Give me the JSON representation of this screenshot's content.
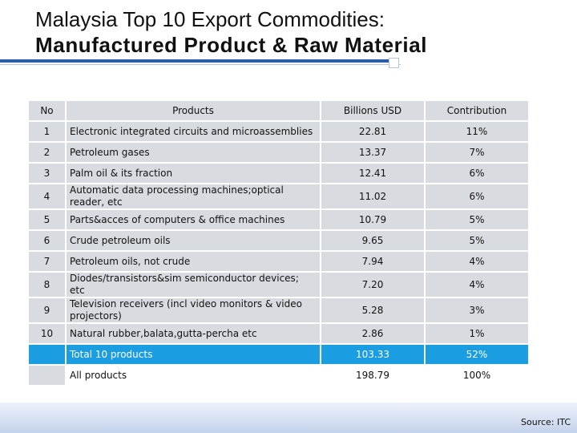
{
  "title": {
    "line1": "Malaysia Top 10 Export Commodities:",
    "line2": "Manufactured Product & Raw Material"
  },
  "table": {
    "headers": {
      "no": "No",
      "products": "Products",
      "billions": "Billions USD",
      "contribution": "Contribution"
    },
    "rows": [
      {
        "no": "1",
        "product": "Electronic integrated circuits and microassemblies",
        "value": "22.81",
        "contribution": "11%"
      },
      {
        "no": "2",
        "product": "Petroleum gases",
        "value": "13.37",
        "contribution": "7%"
      },
      {
        "no": "3",
        "product": "Palm oil & its fraction",
        "value": "12.41",
        "contribution": "6%"
      },
      {
        "no": "4",
        "product": "Automatic data processing machines;optical reader, etc",
        "value": "11.02",
        "contribution": "6%"
      },
      {
        "no": "5",
        "product": "Parts&acces of computers & office machines",
        "value": "10.79",
        "contribution": "5%"
      },
      {
        "no": "6",
        "product": "Crude petroleum oils",
        "value": "9.65",
        "contribution": "5%"
      },
      {
        "no": "7",
        "product": "Petroleum oils, not crude",
        "value": "7.94",
        "contribution": "4%"
      },
      {
        "no": "8",
        "product": "Diodes/transistors&sim semiconductor devices; etc",
        "value": "7.20",
        "contribution": "4%"
      },
      {
        "no": "9",
        "product": "Television receivers (incl video monitors & video projectors)",
        "value": "5.28",
        "contribution": "3%"
      },
      {
        "no": "10",
        "product": "Natural rubber,balata,gutta-percha etc",
        "value": "2.86",
        "contribution": "1%"
      }
    ],
    "total10": {
      "label": "Total 10 products",
      "value": "103.33",
      "contribution": "52%"
    },
    "all": {
      "label": "All products",
      "value": "198.79",
      "contribution": "100%"
    }
  },
  "source": "Source: ITC",
  "colors": {
    "accent_blue": "#2a5caa",
    "highlight_row": "#1b9de2",
    "cell_gray": "#d8dce0"
  }
}
